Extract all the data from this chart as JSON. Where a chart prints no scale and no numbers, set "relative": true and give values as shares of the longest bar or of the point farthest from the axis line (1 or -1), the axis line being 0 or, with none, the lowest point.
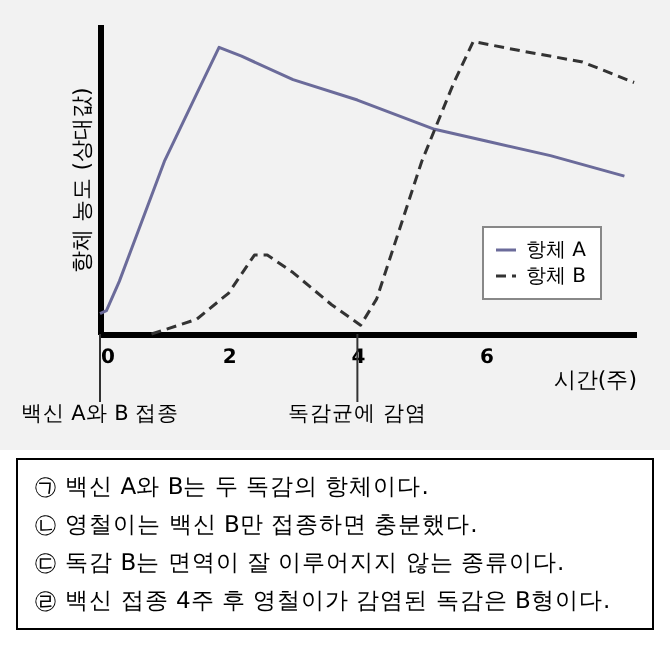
{
  "chart_data": {
    "type": "line",
    "relative": true,
    "ylabel": "항체 농도 (상대값)",
    "xlabel": "시간(주)",
    "xlim": [
      0,
      8.33
    ],
    "xticks": [
      0,
      2,
      4,
      6
    ],
    "legend": "bottom right",
    "grid": false,
    "series": [
      {
        "name": "항체 A",
        "color": "#6b6b9a",
        "line_style": "solid",
        "x": [
          0,
          0.1,
          0.3,
          1.0,
          1.5,
          1.85,
          2.2,
          3,
          4,
          5.2,
          6,
          7,
          8.15
        ],
        "values": [
          0.07,
          0.08,
          0.18,
          0.59,
          0.82,
          0.98,
          0.95,
          0.87,
          0.8,
          0.7,
          0.66,
          0.61,
          0.54
        ]
      },
      {
        "name": "항체 B",
        "color": "#333333",
        "line_style": "dashed",
        "x": [
          0.8,
          1.5,
          2,
          2.4,
          2.6,
          3,
          3.6,
          4.05,
          4.3,
          5,
          5.5,
          5.8,
          6.5,
          7.5,
          8.3
        ],
        "values": [
          0,
          0.05,
          0.14,
          0.27,
          0.27,
          0.21,
          0.1,
          0.03,
          0.12,
          0.59,
          0.86,
          1,
          0.97,
          0.93,
          0.86
        ]
      }
    ],
    "ref_lines": [
      {
        "axis": "x",
        "value": 0,
        "label": "백신 A와 B 접종"
      },
      {
        "axis": "x",
        "value": 4,
        "label": "독감균에 감염"
      }
    ],
    "annotations": [
      "㉠ 백신 A와 B는 두 독감의 항체이다.",
      "㉡ 영철이는 백신 B만 접종하면 충분했다.",
      "㉢ 독감 B는 면역이 잘 이루어지지 않는 종류이다.",
      "㉣ 백신 접종 4주 후 영철이가 감염된 독감은 B형이다."
    ]
  }
}
